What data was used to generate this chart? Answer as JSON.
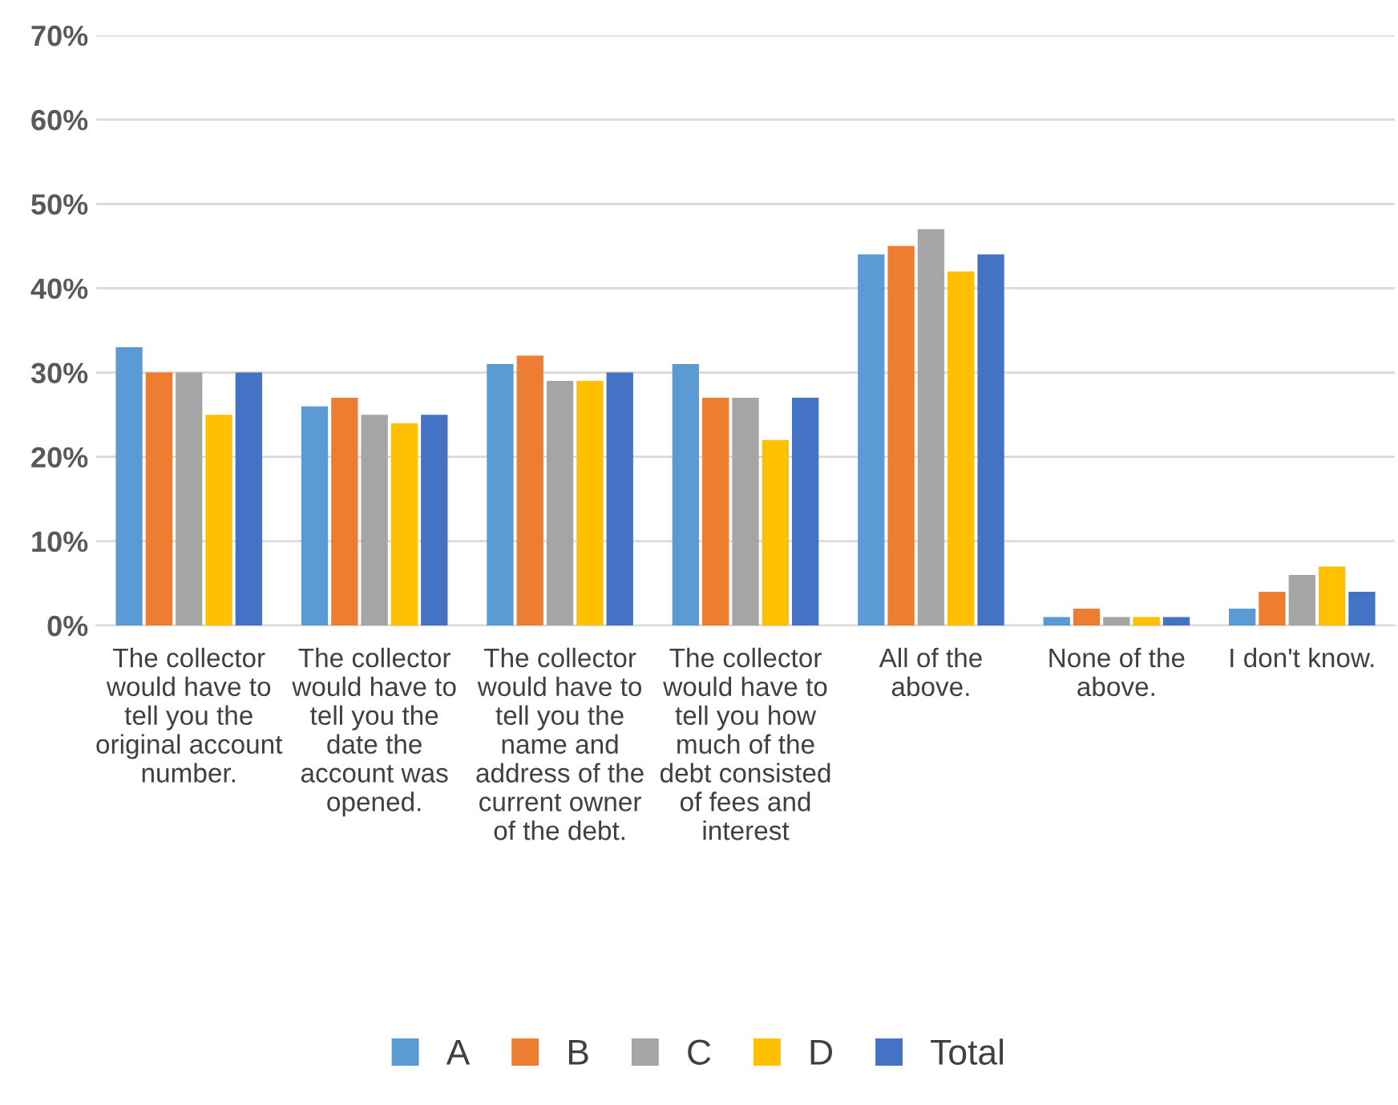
{
  "chart_data": {
    "type": "bar",
    "categories": [
      "The collector\nwould have to\ntell you the\noriginal account\nnumber.",
      "The collector\nwould have to\ntell you the\ndate the\naccount was\nopened.",
      "The collector\nwould have to\ntell you the\nname and\naddress of the\ncurrent owner\nof the debt.",
      "The collector\nwould have to\ntell you how\nmuch of the\ndebt consisted\nof fees and\ninterest",
      "All of the\nabove.",
      "None of the\nabove.",
      "I don't know."
    ],
    "series": [
      {
        "name": "A",
        "color": "#5b9bd5",
        "values": [
          33,
          26,
          31,
          31,
          44,
          1,
          2
        ]
      },
      {
        "name": "B",
        "color": "#ed7d31",
        "values": [
          30,
          27,
          32,
          27,
          45,
          2,
          4
        ]
      },
      {
        "name": "C",
        "color": "#a5a5a5",
        "values": [
          30,
          25,
          29,
          27,
          47,
          1,
          6
        ]
      },
      {
        "name": "D",
        "color": "#ffc000",
        "values": [
          25,
          24,
          29,
          22,
          42,
          1,
          7
        ]
      },
      {
        "name": "Total",
        "color": "#4472c4",
        "values": [
          30,
          25,
          30,
          27,
          44,
          1,
          4
        ]
      }
    ],
    "ylim": [
      0,
      70
    ],
    "yticks": [
      {
        "value": 0,
        "label": "0%"
      },
      {
        "value": 10,
        "label": "10%"
      },
      {
        "value": 20,
        "label": "20%"
      },
      {
        "value": 30,
        "label": "30%"
      },
      {
        "value": 40,
        "label": "40%"
      },
      {
        "value": 50,
        "label": "50%"
      },
      {
        "value": 60,
        "label": "60%"
      },
      {
        "value": 70,
        "label": "70%"
      }
    ],
    "grid": "y",
    "legend": "bottom"
  }
}
